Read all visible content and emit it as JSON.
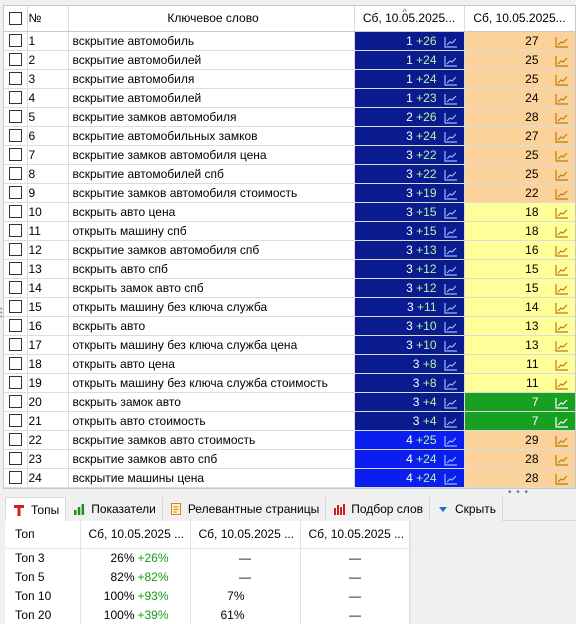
{
  "grid": {
    "header": {
      "num": "№",
      "keyword": "Ключевое слово",
      "date1": "Сб, 10.05.2025...",
      "date2": "Сб, 10.05.2025..."
    },
    "rows": [
      {
        "n": "1",
        "kw": "вскрытие автомобиль",
        "pos": "1",
        "gain": "+26",
        "pos_bg": "navy",
        "p2": "27",
        "p2_bg": "orange"
      },
      {
        "n": "2",
        "kw": "вскрытие автомобилей",
        "pos": "1",
        "gain": "+24",
        "pos_bg": "navy",
        "p2": "25",
        "p2_bg": "orange"
      },
      {
        "n": "3",
        "kw": "вскрытие автомобиля",
        "pos": "1",
        "gain": "+24",
        "pos_bg": "navy",
        "p2": "25",
        "p2_bg": "orange"
      },
      {
        "n": "4",
        "kw": "вскрытие автомобилей",
        "pos": "1",
        "gain": "+23",
        "pos_bg": "navy",
        "p2": "24",
        "p2_bg": "orange"
      },
      {
        "n": "5",
        "kw": "вскрытие замков автомобиля",
        "pos": "2",
        "gain": "+26",
        "pos_bg": "navy",
        "p2": "28",
        "p2_bg": "orange"
      },
      {
        "n": "6",
        "kw": "вскрытие автомобильных замков",
        "pos": "3",
        "gain": "+24",
        "pos_bg": "navy",
        "p2": "27",
        "p2_bg": "orange"
      },
      {
        "n": "7",
        "kw": "вскрытие замков автомобиля цена",
        "pos": "3",
        "gain": "+22",
        "pos_bg": "navy",
        "p2": "25",
        "p2_bg": "orange"
      },
      {
        "n": "8",
        "kw": "вскрытие автомобилей спб",
        "pos": "3",
        "gain": "+22",
        "pos_bg": "navy",
        "p2": "25",
        "p2_bg": "orange"
      },
      {
        "n": "9",
        "kw": "вскрытие замков автомобиля стоимость",
        "pos": "3",
        "gain": "+19",
        "pos_bg": "navy",
        "p2": "22",
        "p2_bg": "orange"
      },
      {
        "n": "10",
        "kw": "вскрыть авто цена",
        "pos": "3",
        "gain": "+15",
        "pos_bg": "navy",
        "p2": "18",
        "p2_bg": "yellow"
      },
      {
        "n": "11",
        "kw": "открыть машину спб",
        "pos": "3",
        "gain": "+15",
        "pos_bg": "navy",
        "p2": "18",
        "p2_bg": "yellow"
      },
      {
        "n": "12",
        "kw": "вскрытие замков автомобиля спб",
        "pos": "3",
        "gain": "+13",
        "pos_bg": "navy",
        "p2": "16",
        "p2_bg": "yellow"
      },
      {
        "n": "13",
        "kw": "вскрыть авто спб",
        "pos": "3",
        "gain": "+12",
        "pos_bg": "navy",
        "p2": "15",
        "p2_bg": "yellow"
      },
      {
        "n": "14",
        "kw": "вскрыть замок авто спб",
        "pos": "3",
        "gain": "+12",
        "pos_bg": "navy",
        "p2": "15",
        "p2_bg": "yellow"
      },
      {
        "n": "15",
        "kw": "открыть машину без ключа служба",
        "pos": "3",
        "gain": "+11",
        "pos_bg": "navy",
        "p2": "14",
        "p2_bg": "yellow"
      },
      {
        "n": "16",
        "kw": "вскрыть авто",
        "pos": "3",
        "gain": "+10",
        "pos_bg": "navy",
        "p2": "13",
        "p2_bg": "yellow"
      },
      {
        "n": "17",
        "kw": "открыть машину без ключа служба цена",
        "pos": "3",
        "gain": "+10",
        "pos_bg": "navy",
        "p2": "13",
        "p2_bg": "yellow"
      },
      {
        "n": "18",
        "kw": "открыть авто цена",
        "pos": "3",
        "gain": "+8",
        "pos_bg": "navy",
        "p2": "11",
        "p2_bg": "yellow"
      },
      {
        "n": "19",
        "kw": "открыть машину без ключа служба стоимость",
        "pos": "3",
        "gain": "+8",
        "pos_bg": "navy",
        "p2": "11",
        "p2_bg": "yellow"
      },
      {
        "n": "20",
        "kw": "вскрыть замок авто",
        "pos": "3",
        "gain": "+4",
        "pos_bg": "navy",
        "p2": "7",
        "p2_bg": "green"
      },
      {
        "n": "21",
        "kw": "открыть авто стоимость",
        "pos": "3",
        "gain": "+4",
        "pos_bg": "navy",
        "p2": "7",
        "p2_bg": "green"
      },
      {
        "n": "22",
        "kw": "вскрытие замков авто стоимость",
        "pos": "4",
        "gain": "+25",
        "pos_bg": "blue",
        "p2": "29",
        "p2_bg": "orange"
      },
      {
        "n": "23",
        "kw": "вскрытие замков авто спб",
        "pos": "4",
        "gain": "+24",
        "pos_bg": "blue",
        "p2": "28",
        "p2_bg": "orange"
      },
      {
        "n": "24",
        "kw": "вскрытие машины цена",
        "pos": "4",
        "gain": "+24",
        "pos_bg": "blue",
        "p2": "28",
        "p2_bg": "orange"
      }
    ]
  },
  "tabs": [
    {
      "label": "Топы",
      "icon": "tops-icon",
      "active": true
    },
    {
      "label": "Показатели",
      "icon": "bar-chart-icon",
      "active": false
    },
    {
      "label": "Релевантные страницы",
      "icon": "document-icon",
      "active": false
    },
    {
      "label": "Подбор слов",
      "icon": "word-chart-icon",
      "active": false
    },
    {
      "label": "Скрыть",
      "icon": "triangle-down-icon",
      "active": false
    }
  ],
  "tops": {
    "header": {
      "label": "Топ",
      "c1": "Сб, 10.05.2025 ...",
      "c2": "Сб, 10.05.2025 ...",
      "c3": "Сб, 10.05.2025 ..."
    },
    "rows": [
      {
        "label": "Топ 3",
        "c1_pct": "26%",
        "c1_gain": "+26%",
        "c2": "—",
        "c3": "—"
      },
      {
        "label": "Топ 5",
        "c1_pct": "82%",
        "c1_gain": "+82%",
        "c2": "—",
        "c3": "—"
      },
      {
        "label": "Топ 10",
        "c1_pct": "100%",
        "c1_gain": "+93%",
        "c2": "7%",
        "c3": "—"
      },
      {
        "label": "Топ 20",
        "c1_pct": "100%",
        "c1_gain": "+39%",
        "c2": "61%",
        "c3": "—"
      }
    ]
  },
  "colors": {
    "navy": "#0a1a8f",
    "blue": "#0a1ef0",
    "orange": "#fbd29a",
    "yellow": "#ffff99",
    "green": "#18a020",
    "gain_text": "#159a15"
  }
}
